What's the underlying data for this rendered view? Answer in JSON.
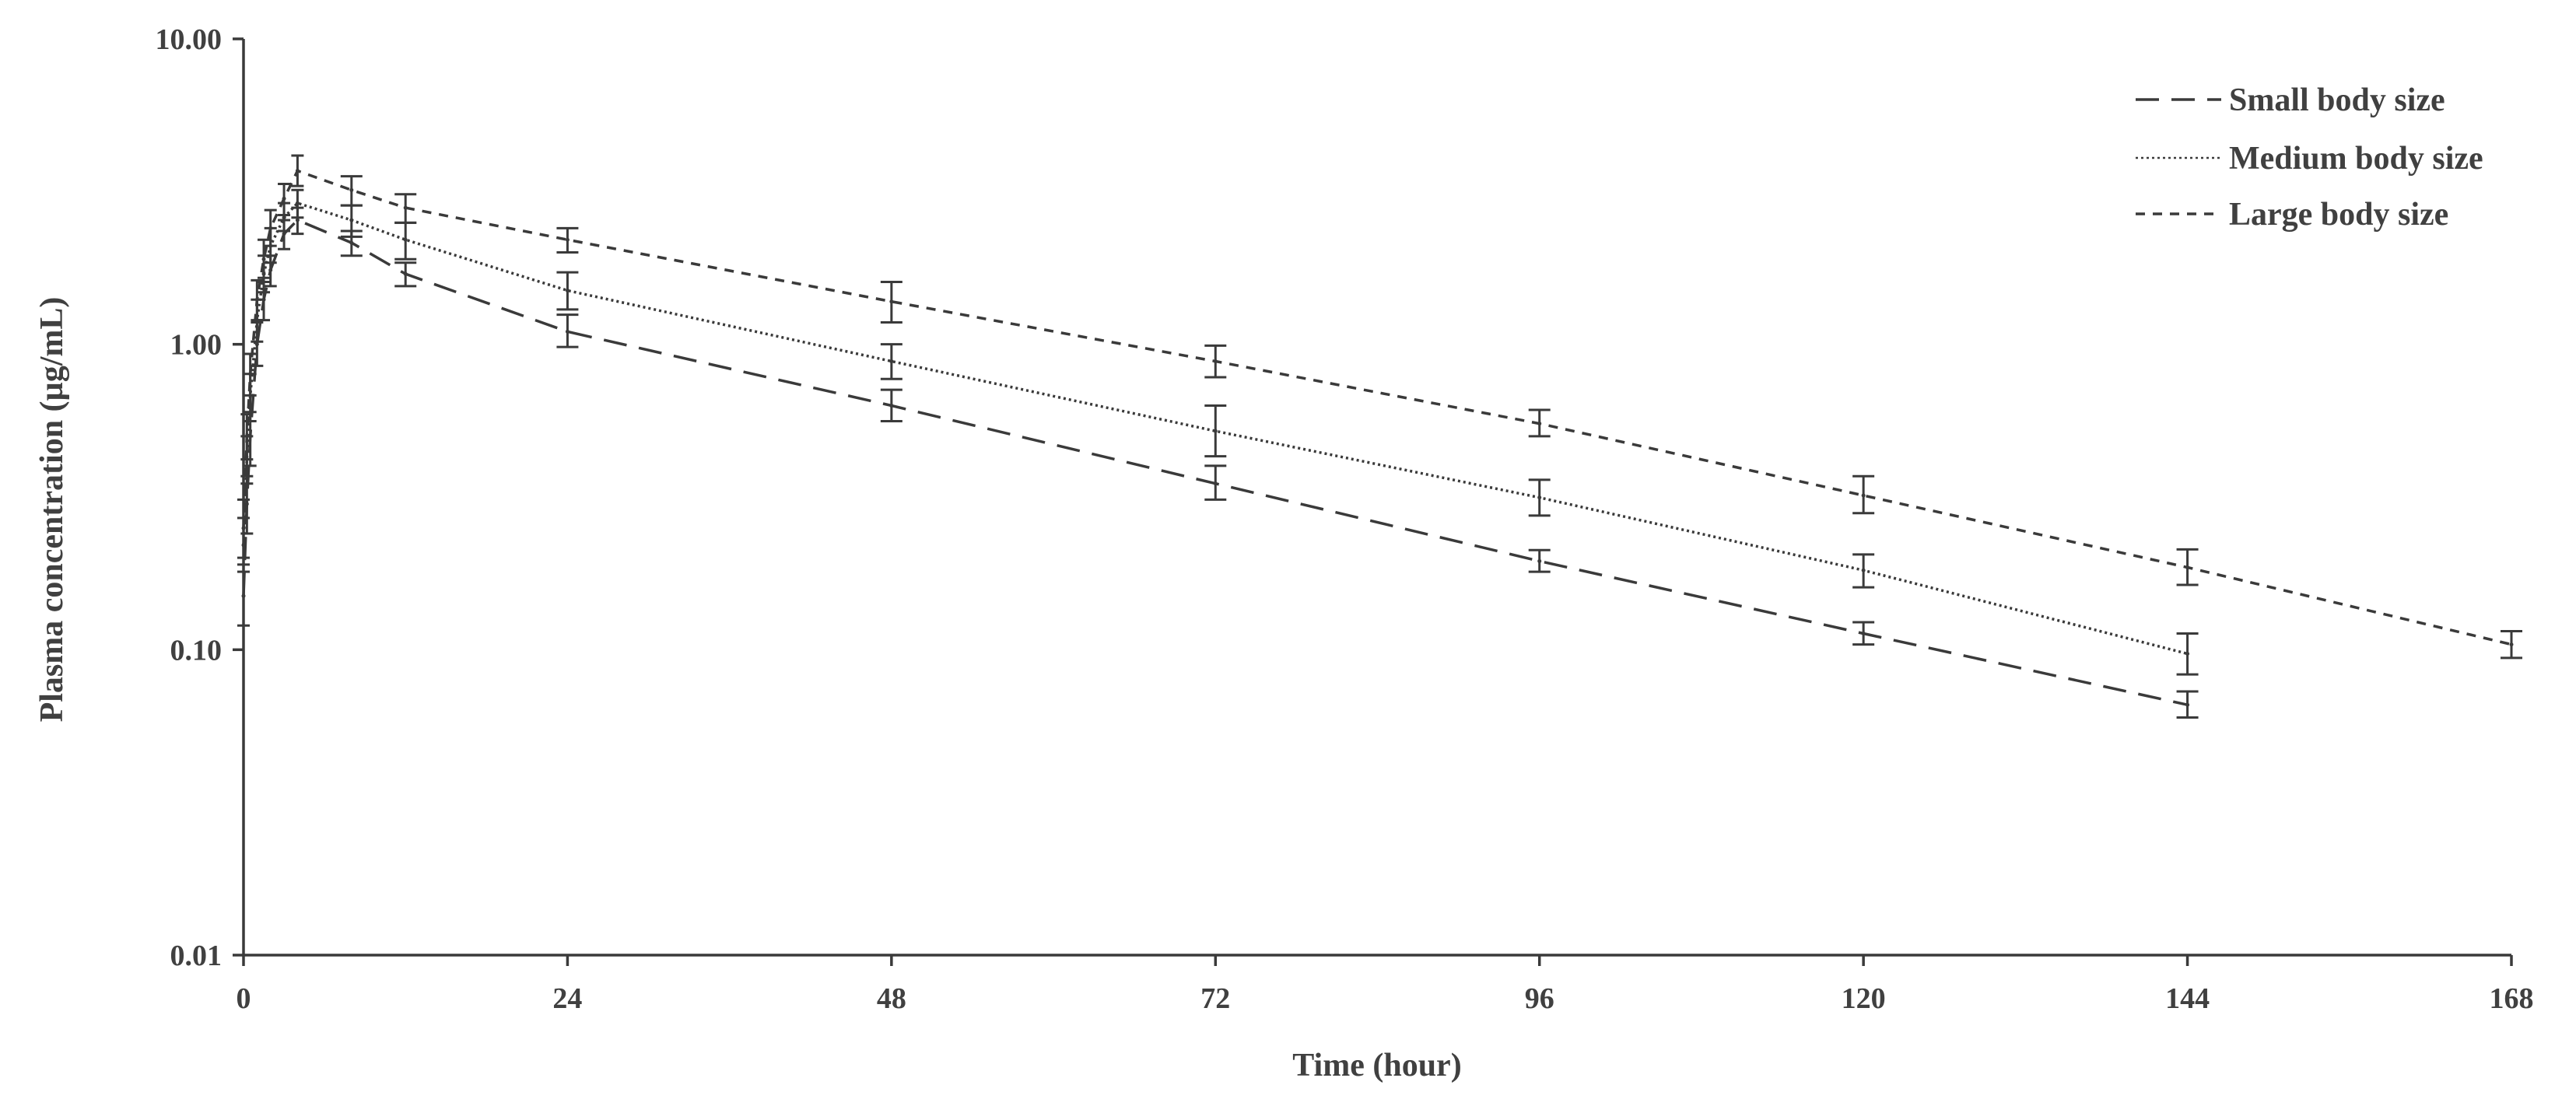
{
  "chart_data": {
    "type": "line",
    "xlabel": "Time (hour)",
    "ylabel": "Plasma concentration (µg/mL)",
    "x_ticks": [
      "0",
      "24",
      "48",
      "72",
      "96",
      "120",
      "144",
      "168"
    ],
    "y_ticks": [
      "0.01",
      "0.10",
      "1.00",
      "10.00"
    ],
    "xlim": [
      0,
      168
    ],
    "ylim": [
      0.01,
      10
    ],
    "y_scale": "log",
    "grid": false,
    "legend_position": "top-right",
    "series": [
      {
        "name": "Small body size",
        "dash": "long-dash",
        "x": [
          0,
          0.25,
          0.5,
          1,
          1.5,
          2,
          3,
          4,
          8,
          12,
          24,
          48,
          72,
          96,
          120,
          144
        ],
        "y": [
          0.15,
          0.3,
          0.5,
          1.0,
          1.4,
          1.75,
          2.3,
          2.55,
          2.15,
          1.7,
          1.1,
          0.63,
          0.35,
          0.195,
          0.113,
          0.066
        ],
        "err_low": [
          0.12,
          0.24,
          0.4,
          0.85,
          1.2,
          1.55,
          2.05,
          2.3,
          1.95,
          1.55,
          0.98,
          0.56,
          0.31,
          0.18,
          0.104,
          0.06
        ],
        "err_high": [
          0.19,
          0.37,
          0.6,
          1.18,
          1.6,
          1.95,
          2.55,
          2.8,
          2.35,
          1.85,
          1.25,
          0.71,
          0.4,
          0.212,
          0.123,
          0.073
        ]
      },
      {
        "name": "Medium body size",
        "dash": "dotted",
        "x": [
          0,
          0.25,
          0.5,
          1,
          1.5,
          2,
          3,
          4,
          8,
          12,
          24,
          48,
          72,
          96,
          120,
          144
        ],
        "y": [
          0.22,
          0.42,
          0.68,
          1.2,
          1.7,
          2.1,
          2.6,
          2.9,
          2.55,
          2.2,
          1.5,
          0.88,
          0.52,
          0.315,
          0.182,
          0.097
        ],
        "err_low": [
          0.18,
          0.35,
          0.56,
          1.02,
          1.48,
          1.85,
          2.35,
          2.6,
          2.25,
          1.9,
          1.3,
          0.77,
          0.43,
          0.275,
          0.16,
          0.083
        ],
        "err_high": [
          0.27,
          0.5,
          0.8,
          1.4,
          1.95,
          2.4,
          2.9,
          3.2,
          2.85,
          2.5,
          1.72,
          1.0,
          0.63,
          0.36,
          0.205,
          0.113
        ]
      },
      {
        "name": "Large body size",
        "dash": "short-dash",
        "x": [
          0,
          0.25,
          0.5,
          1,
          1.5,
          2,
          3,
          4,
          8,
          12,
          24,
          48,
          72,
          96,
          120,
          144,
          168
        ],
        "y": [
          0.25,
          0.5,
          0.8,
          1.4,
          1.9,
          2.4,
          3.0,
          3.7,
          3.2,
          2.8,
          2.2,
          1.38,
          0.88,
          0.55,
          0.32,
          0.186,
          0.104
        ],
        "err_low": [
          0.2,
          0.42,
          0.68,
          1.2,
          1.65,
          2.1,
          2.65,
          3.3,
          2.85,
          2.5,
          2.0,
          1.18,
          0.78,
          0.5,
          0.28,
          0.163,
          0.094
        ],
        "err_high": [
          0.31,
          0.59,
          0.93,
          1.62,
          2.2,
          2.75,
          3.35,
          4.15,
          3.55,
          3.1,
          2.4,
          1.6,
          0.99,
          0.61,
          0.37,
          0.213,
          0.115
        ]
      }
    ]
  }
}
